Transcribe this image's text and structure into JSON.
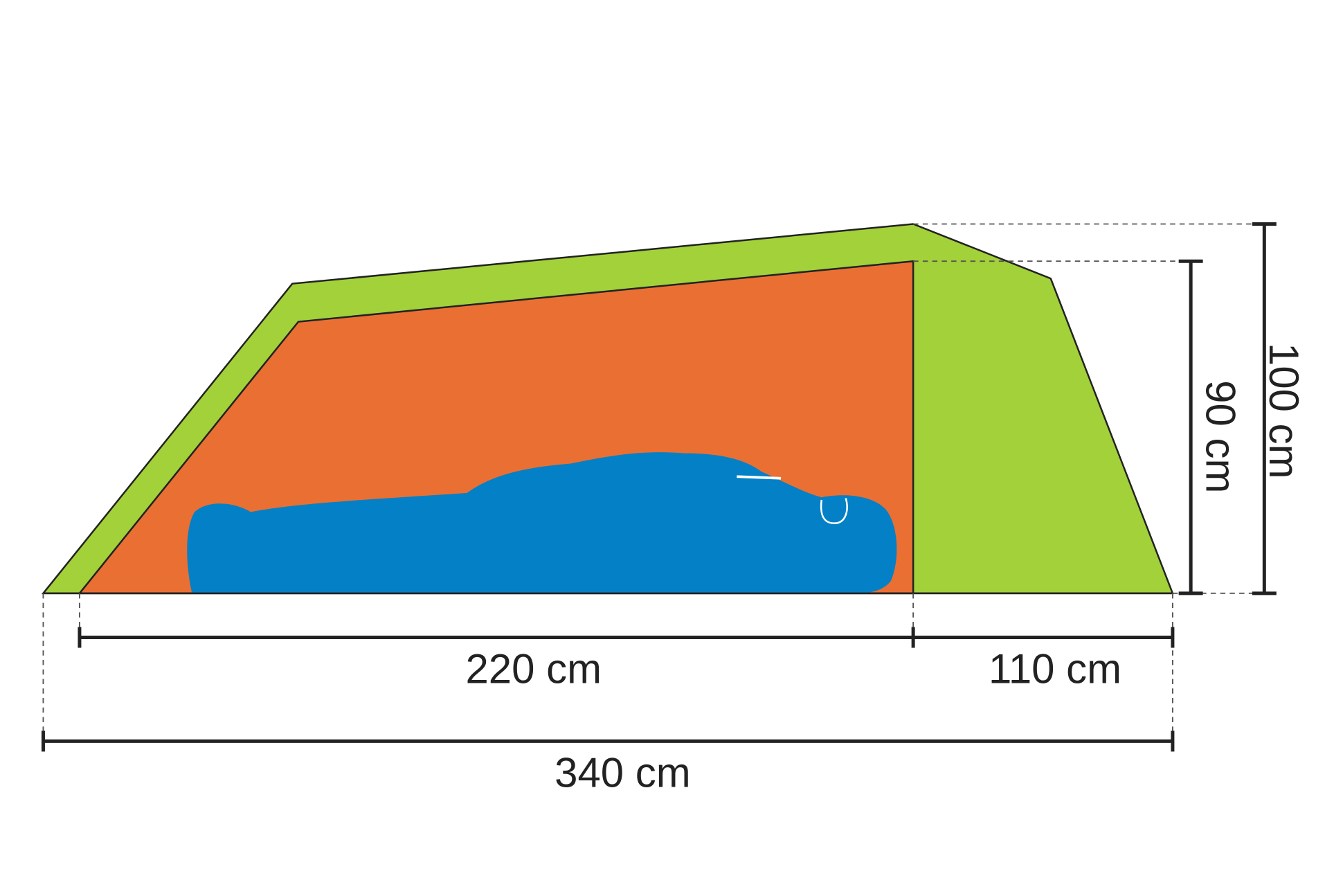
{
  "labels": {
    "inner_length": "220 cm",
    "vestibule_length": "110 cm",
    "total_length": "340 cm",
    "inner_height": "90 cm",
    "total_height": "100 cm"
  },
  "colors": {
    "outer_tent": "#a3d139",
    "inner_tent": "#ea6f33",
    "sleeping_bag": "#0480c6",
    "lines": "#222222"
  }
}
